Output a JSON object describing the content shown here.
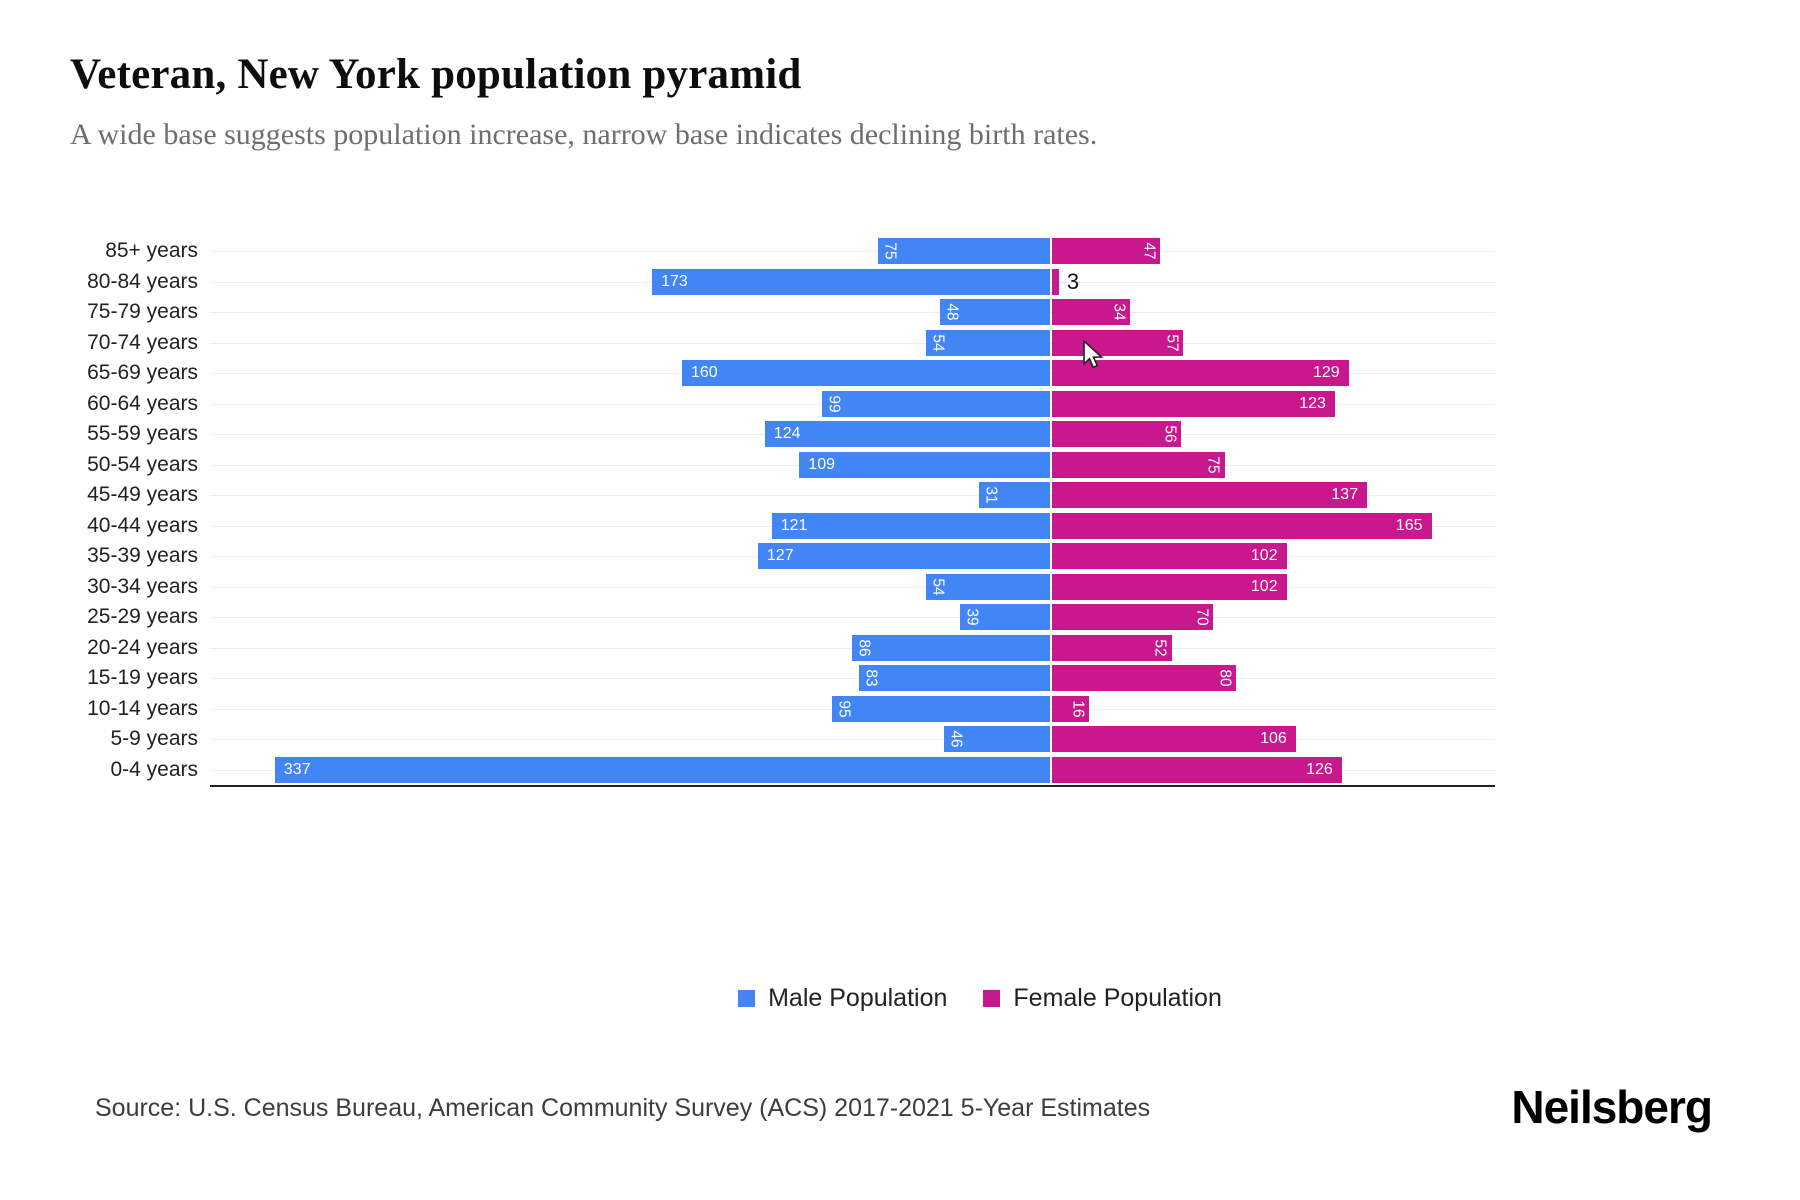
{
  "header": {
    "title": "Veteran, New York population pyramid",
    "subtitle": "A wide base suggests population increase, narrow base indicates declining birth rates."
  },
  "chart_data": {
    "type": "bar",
    "variant": "population_pyramid",
    "categories_top_to_bottom": [
      "85+ years",
      "80-84 years",
      "75-79 years",
      "70-74 years",
      "65-69 years",
      "60-64 years",
      "55-59 years",
      "50-54 years",
      "45-49 years",
      "40-44 years",
      "35-39 years",
      "30-34 years",
      "25-29 years",
      "20-24 years",
      "15-19 years",
      "10-14 years",
      "5-9 years",
      "0-4 years"
    ],
    "series": [
      {
        "name": "Male Population",
        "side": "left",
        "color": "#4285F4",
        "values": [
          75,
          173,
          48,
          54,
          160,
          99,
          124,
          109,
          31,
          121,
          127,
          54,
          39,
          86,
          83,
          95,
          46,
          337
        ]
      },
      {
        "name": "Female Population",
        "side": "right",
        "color": "#C9188D",
        "values": [
          47,
          3,
          34,
          57,
          129,
          123,
          56,
          75,
          137,
          165,
          102,
          102,
          70,
          52,
          80,
          16,
          106,
          126
        ]
      }
    ],
    "legend_position": "bottom-center",
    "gridlines": "per-category horizontal light gray",
    "baseline_axis": "bottom"
  },
  "footer": {
    "source": "Source: U.S. Census Bureau, American Community Survey (ACS) 2017-2021 5-Year Estimates",
    "brand": "Neilsberg"
  }
}
